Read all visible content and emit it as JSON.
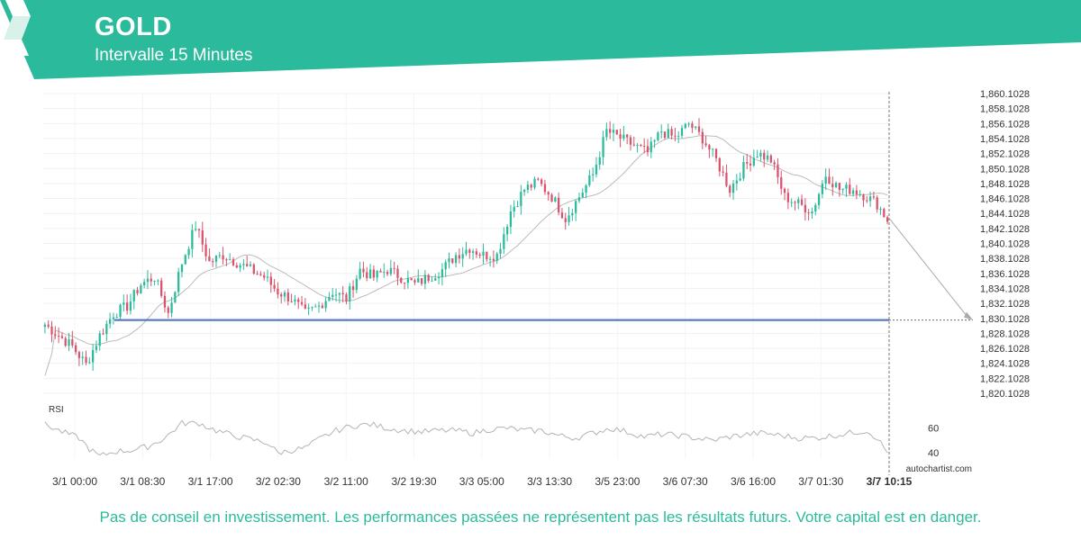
{
  "header": {
    "title": "GOLD",
    "subtitle": "Intervalle 15 Minutes",
    "color": "#2bbb9c"
  },
  "chart_data": {
    "type": "candlestick",
    "instrument": "GOLD",
    "interval": "15 Minutes",
    "y_ticks": [
      "1,860.1028",
      "1,858.1028",
      "1,856.1028",
      "1,854.1028",
      "1,852.1028",
      "1,850.1028",
      "1,848.1028",
      "1,846.1028",
      "1,844.1028",
      "1,842.1028",
      "1,840.1028",
      "1,838.1028",
      "1,836.1028",
      "1,834.1028",
      "1,832.1028",
      "1,830.1028",
      "1,828.1028",
      "1,826.1028",
      "1,824.1028",
      "1,822.1028",
      "1,820.1028"
    ],
    "ylim": [
      1819.1,
      1861.1
    ],
    "x_ticks": [
      "3/1 00:00",
      "3/1 08:30",
      "3/1 17:00",
      "3/2 02:30",
      "3/2 11:00",
      "3/2 19:30",
      "3/3 05:00",
      "3/3 13:30",
      "3/5 23:00",
      "3/6 07:30",
      "3/6 16:00",
      "3/7 01:30"
    ],
    "current_time_label": "3/7 10:15",
    "support_level": 1830.1028,
    "price_path": [
      [
        0,
        1829.5
      ],
      [
        4,
        1828
      ],
      [
        8,
        1826.5
      ],
      [
        12,
        1824
      ],
      [
        16,
        1828
      ],
      [
        20,
        1831
      ],
      [
        24,
        1832
      ],
      [
        28,
        1835
      ],
      [
        32,
        1836
      ],
      [
        36,
        1831
      ],
      [
        40,
        1838
      ],
      [
        44,
        1843
      ],
      [
        48,
        1838
      ],
      [
        52,
        1839
      ],
      [
        56,
        1838
      ],
      [
        60,
        1837
      ],
      [
        64,
        1836
      ],
      [
        68,
        1834
      ],
      [
        72,
        1833
      ],
      [
        76,
        1831
      ],
      [
        80,
        1832
      ],
      [
        84,
        1834
      ],
      [
        88,
        1833
      ],
      [
        92,
        1837
      ],
      [
        96,
        1836
      ],
      [
        100,
        1837
      ],
      [
        104,
        1836
      ],
      [
        108,
        1835
      ],
      [
        112,
        1836
      ],
      [
        116,
        1837
      ],
      [
        120,
        1839
      ],
      [
        124,
        1840
      ],
      [
        128,
        1839
      ],
      [
        132,
        1839
      ],
      [
        136,
        1845
      ],
      [
        140,
        1848
      ],
      [
        144,
        1849
      ],
      [
        148,
        1847
      ],
      [
        152,
        1844
      ],
      [
        156,
        1847
      ],
      [
        160,
        1850
      ],
      [
        164,
        1856
      ],
      [
        168,
        1855
      ],
      [
        172,
        1854
      ],
      [
        176,
        1853
      ],
      [
        180,
        1856
      ],
      [
        184,
        1855
      ],
      [
        188,
        1857
      ],
      [
        192,
        1855
      ],
      [
        196,
        1852
      ],
      [
        200,
        1848
      ],
      [
        204,
        1851
      ],
      [
        208,
        1853
      ],
      [
        212,
        1852
      ],
      [
        216,
        1847
      ],
      [
        220,
        1846
      ],
      [
        224,
        1845
      ],
      [
        228,
        1850
      ],
      [
        232,
        1848
      ],
      [
        236,
        1848
      ],
      [
        240,
        1847
      ],
      [
        243,
        1846
      ],
      [
        246,
        1843.8
      ]
    ],
    "projection": {
      "from": 1843.9,
      "to": 1830.1028
    },
    "indicator": {
      "name": "RSI",
      "ticks": [
        "60",
        "40"
      ],
      "range": [
        35,
        70
      ],
      "path": [
        [
          0,
          63
        ],
        [
          5,
          57
        ],
        [
          10,
          52
        ],
        [
          13,
          43
        ],
        [
          16,
          37
        ],
        [
          20,
          41
        ],
        [
          25,
          42
        ],
        [
          30,
          45
        ],
        [
          35,
          52
        ],
        [
          40,
          64
        ],
        [
          45,
          64
        ],
        [
          50,
          58
        ],
        [
          55,
          54
        ],
        [
          60,
          51
        ],
        [
          65,
          48
        ],
        [
          68,
          40
        ],
        [
          72,
          42
        ],
        [
          76,
          44
        ],
        [
          80,
          51
        ],
        [
          85,
          58
        ],
        [
          90,
          62
        ],
        [
          95,
          63
        ],
        [
          100,
          60
        ],
        [
          105,
          58
        ],
        [
          110,
          57
        ],
        [
          115,
          58
        ],
        [
          120,
          58
        ],
        [
          125,
          56
        ],
        [
          130,
          59
        ],
        [
          135,
          60
        ],
        [
          140,
          58
        ],
        [
          145,
          58
        ],
        [
          150,
          54
        ],
        [
          155,
          52
        ],
        [
          160,
          56
        ],
        [
          165,
          60
        ],
        [
          170,
          57
        ],
        [
          175,
          53
        ],
        [
          180,
          55
        ],
        [
          185,
          54
        ],
        [
          190,
          52
        ],
        [
          195,
          50
        ],
        [
          200,
          53
        ],
        [
          205,
          55
        ],
        [
          210,
          56
        ],
        [
          215,
          54
        ],
        [
          220,
          52
        ],
        [
          225,
          52
        ],
        [
          230,
          54
        ],
        [
          235,
          56
        ],
        [
          240,
          58
        ],
        [
          243,
          52
        ],
        [
          246,
          40
        ]
      ]
    },
    "source_label": "autochartist.com",
    "colors": {
      "up": "#2bbb9c",
      "down": "#d9536c",
      "support": "#4a6fb5",
      "ma": "#bbbbbb",
      "rsi": "#b3b3b3"
    }
  },
  "disclaimer": "Pas de conseil en investissement. Les performances passées ne représentent pas les résultats futurs. Votre capital est en danger."
}
